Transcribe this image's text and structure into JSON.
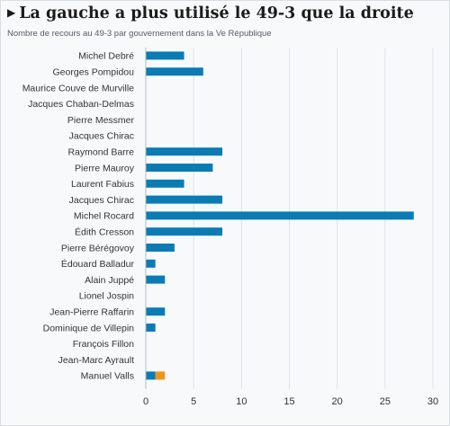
{
  "title": "La gauche a plus utilisé le 49-3 que la droite",
  "subtitle": "Nombre de recours au 49-3 par gouvernement dans la Ve République",
  "icons": {
    "title_marker": "triangle-right-icon"
  },
  "colors": {
    "bar_primary": "#0a7bb5",
    "bar_secondary": "#f0941e",
    "grid": "#e1e4e8",
    "axis": "#b5bcc4"
  },
  "chart_data": {
    "type": "bar",
    "orientation": "horizontal",
    "stacked": true,
    "categories": [
      "Michel Debré",
      "Georges Pompidou",
      "Maurice Couve de Murville",
      "Jacques Chaban-Delmas",
      "Pierre Messmer",
      "Jacques Chirac",
      "Raymond Barre",
      "Pierre Mauroy",
      "Laurent Fabius",
      "Jacques Chirac",
      "Michel Rocard",
      "Édith Cresson",
      "Pierre Bérégovoy",
      "Édouard Balladur",
      "Alain Juppé",
      "Lionel Jospin",
      "Jean-Pierre Raffarin",
      "Dominique de Villepin",
      "François Fillon",
      "Jean-Marc Ayrault",
      "Manuel Valls"
    ],
    "series": [
      {
        "values": [
          4,
          6,
          0,
          0,
          0,
          0,
          8,
          7,
          4,
          8,
          28,
          8,
          3,
          1,
          2,
          0,
          2,
          1,
          0,
          0,
          1
        ]
      },
      {
        "values": [
          0,
          0,
          0,
          0,
          0,
          0,
          0,
          0,
          0,
          0,
          0,
          0,
          0,
          0,
          0,
          0,
          0,
          0,
          0,
          0,
          1
        ]
      }
    ],
    "xlim": [
      0,
      30
    ],
    "xticks": [
      0,
      5,
      10,
      15,
      20,
      25,
      30
    ],
    "grid": true,
    "legend": "none"
  }
}
